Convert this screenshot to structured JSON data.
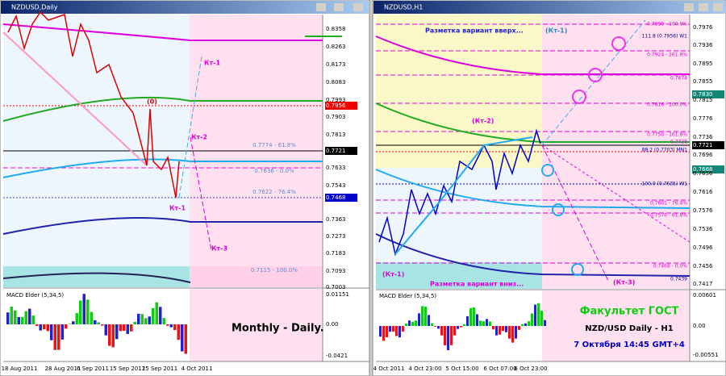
{
  "left_window": {
    "title": "NZDUSD,Daily",
    "price_axis": [
      "0.8358",
      "0.8263",
      "0.8173",
      "0.8083",
      "0.7993",
      "0.7956",
      "0.7903",
      "0.7813",
      "0.7721",
      "0.7633",
      "0.7543",
      "0.7468",
      "0.7363",
      "0.7273",
      "0.7183",
      "0.7093",
      "0.7003"
    ],
    "indicator": {
      "name": "MACD Elder (5,34,5)",
      "axis": [
        "0.01151",
        "0.00",
        "-0.0421"
      ]
    },
    "dates": [
      "18 Aug 2011",
      "28 Aug 2011",
      "6 Sep 2011",
      "15 Sep 2011",
      "25 Sep 2011",
      "4 Oct 2011"
    ],
    "annotations": [
      "(0)",
      "Кт-1",
      "Кт-2",
      "Кт-1",
      "Кт-3",
      "Monthly - Daily."
    ],
    "levels": [
      "0.7774 - 61.8%",
      "0.7636 - 0.0%",
      "0.7622 - 76.4%",
      "0.7115 - 100.0%"
    ]
  },
  "right_window": {
    "title": "NZDUSD,H1",
    "price_axis": [
      "0.7976",
      "0.7936",
      "0.7895",
      "0.7855",
      "0.7830",
      "0.7815",
      "0.7776",
      "0.7736",
      "0.7721",
      "0.7696",
      "0.7668",
      "0.7656",
      "0.7616",
      "0.7576",
      "0.7536",
      "0.7496",
      "0.7456",
      "0.7417"
    ],
    "indicator": {
      "name": "MACD Elder (5,34,5)",
      "axis": [
        "0.00601",
        "0.00",
        "-0.00551"
      ]
    },
    "dates": [
      "4 Oct 2011",
      "4 Oct 23:00",
      "5 Oct 15:00",
      "6 Oct 07:00",
      "6 Oct 23:00"
    ],
    "annotations": [
      "Разметка вариант вверх...",
      "(Кт-1)",
      "(Кт-2)",
      "(Кт-1)",
      "Разметка вариант вниз...",
      "(Кт-3)"
    ],
    "levels": [
      "0.7990 - 100.0%",
      "111.8 (0.7956) W1",
      "0.7924 - 261.8%",
      "0.7874",
      "0.7816 - 200.0%",
      "0.7750 - 161.8%",
      "0.7728",
      "88.2 (0.7703) MN1",
      "100.0 (0.7635) W1",
      "0.7601 - 76.4%",
      "0.7576 - 61.8%",
      "0.7468 - 0.0%",
      "0.7439"
    ],
    "caption": [
      "Факультет ГОСТ",
      "NZD/USD Daily - H1",
      "7 Октября 14:45 GMT+4"
    ]
  }
}
